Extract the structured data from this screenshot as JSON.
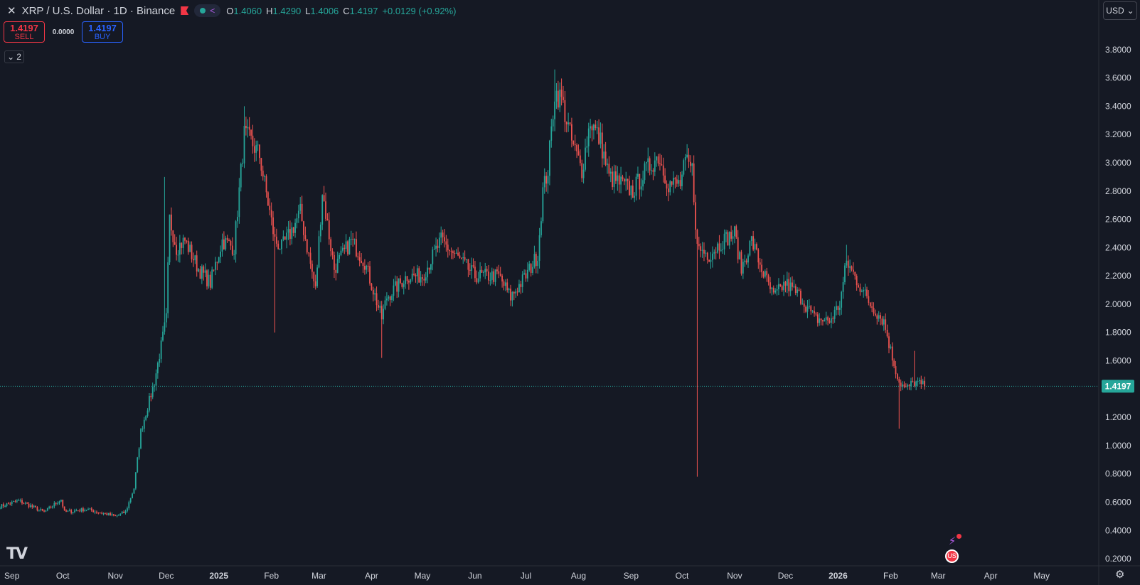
{
  "header": {
    "close_icon": "close-icon",
    "title": "XRP / U.S. Dollar · 1D · Binance",
    "ohlc": {
      "o_label": "O",
      "o": "1.4060",
      "h_label": "H",
      "h": "1.4290",
      "l_label": "L",
      "l": "1.4006",
      "c_label": "C",
      "c": "1.4197",
      "change": "+0.0129 (+0.92%)"
    }
  },
  "trade": {
    "sell_price": "1.4197",
    "sell_label": "SELL",
    "spread": "0.0000",
    "buy_price": "1.4197",
    "buy_label": "BUY"
  },
  "indicators_toggle": "2",
  "currency": "USD",
  "colors": {
    "background": "#151924",
    "up": "#26a69a",
    "down": "#ef5350",
    "text": "#d1d4dc",
    "grid": "#2a2e39"
  },
  "chart_data": {
    "type": "candlestick",
    "grid": false,
    "y_ticks": [
      "3.8000",
      "3.6000",
      "3.4000",
      "3.2000",
      "3.0000",
      "2.8000",
      "2.6000",
      "2.4000",
      "2.2000",
      "2.0000",
      "1.8000",
      "1.6000",
      "1.2000",
      "1.0000",
      "0.8000",
      "0.6000",
      "0.4000",
      "0.2000"
    ],
    "x_ticks": [
      "Sep",
      "Oct",
      "Nov",
      "Dec",
      "2025",
      "Feb",
      "Mar",
      "Apr",
      "May",
      "Jun",
      "Jul",
      "Aug",
      "Sep",
      "Oct",
      "Nov",
      "Dec",
      "2026",
      "Feb",
      "Mar",
      "Apr",
      "May"
    ],
    "last_price": 1.4197,
    "last_price_label": "1.4197",
    "x_range": [
      "2024-08-25",
      "2026-05-20"
    ],
    "y_range": [
      0.13,
      3.95
    ],
    "keypoints": [
      [
        "2024-08-25",
        0.57
      ],
      [
        "2024-09-05",
        0.61
      ],
      [
        "2024-09-20",
        0.53
      ],
      [
        "2024-09-30",
        0.62
      ],
      [
        "2024-10-02",
        0.53
      ],
      [
        "2024-10-15",
        0.55
      ],
      [
        "2024-11-01",
        0.5
      ],
      [
        "2024-11-07",
        0.53
      ],
      [
        "2024-11-12",
        0.7
      ],
      [
        "2024-11-16",
        1.1
      ],
      [
        "2024-11-24",
        1.45
      ],
      [
        "2024-12-01",
        1.9
      ],
      [
        "2024-12-03",
        2.6
      ],
      [
        "2024-12-07",
        2.4
      ],
      [
        "2024-12-12",
        2.45
      ],
      [
        "2024-12-20",
        2.25
      ],
      [
        "2024-12-27",
        2.15
      ],
      [
        "2025-01-03",
        2.45
      ],
      [
        "2025-01-10",
        2.4
      ],
      [
        "2025-01-16",
        3.2
      ],
      [
        "2025-01-20",
        3.15
      ],
      [
        "2025-01-25",
        3.05
      ],
      [
        "2025-02-03",
        2.45
      ],
      [
        "2025-02-07",
        2.4
      ],
      [
        "2025-02-12",
        2.5
      ],
      [
        "2025-02-18",
        2.65
      ],
      [
        "2025-02-27",
        2.1
      ],
      [
        "2025-03-03",
        2.8
      ],
      [
        "2025-03-10",
        2.25
      ],
      [
        "2025-03-20",
        2.45
      ],
      [
        "2025-03-28",
        2.3
      ],
      [
        "2025-04-07",
        1.9
      ],
      [
        "2025-04-10",
        2.05
      ],
      [
        "2025-04-22",
        2.2
      ],
      [
        "2025-05-01",
        2.2
      ],
      [
        "2025-05-12",
        2.45
      ],
      [
        "2025-05-20",
        2.35
      ],
      [
        "2025-06-01",
        2.2
      ],
      [
        "2025-06-15",
        2.2
      ],
      [
        "2025-06-22",
        2.05
      ],
      [
        "2025-07-01",
        2.2
      ],
      [
        "2025-07-08",
        2.35
      ],
      [
        "2025-07-11",
        2.8
      ],
      [
        "2025-07-14",
        2.95
      ],
      [
        "2025-07-18",
        3.5
      ],
      [
        "2025-07-22",
        3.45
      ],
      [
        "2025-07-28",
        3.15
      ],
      [
        "2025-08-03",
        2.95
      ],
      [
        "2025-08-08",
        3.3
      ],
      [
        "2025-08-14",
        3.15
      ],
      [
        "2025-08-19",
        2.9
      ],
      [
        "2025-08-26",
        2.85
      ],
      [
        "2025-09-02",
        2.8
      ],
      [
        "2025-09-10",
        2.95
      ],
      [
        "2025-09-17",
        3.05
      ],
      [
        "2025-09-23",
        2.85
      ],
      [
        "2025-09-30",
        2.85
      ],
      [
        "2025-10-03",
        3.0
      ],
      [
        "2025-10-07",
        2.95
      ],
      [
        "2025-10-10",
        2.4
      ],
      [
        "2025-10-17",
        2.35
      ],
      [
        "2025-10-25",
        2.45
      ],
      [
        "2025-11-01",
        2.5
      ],
      [
        "2025-11-05",
        2.25
      ],
      [
        "2025-11-11",
        2.45
      ],
      [
        "2025-11-17",
        2.25
      ],
      [
        "2025-11-24",
        2.05
      ],
      [
        "2025-12-01",
        2.15
      ],
      [
        "2025-12-10",
        2.05
      ],
      [
        "2025-12-18",
        1.9
      ],
      [
        "2025-12-27",
        1.88
      ],
      [
        "2026-01-02",
        2.0
      ],
      [
        "2026-01-06",
        2.3
      ],
      [
        "2026-01-13",
        2.15
      ],
      [
        "2026-01-20",
        2.0
      ],
      [
        "2026-01-28",
        1.88
      ],
      [
        "2026-02-02",
        1.62
      ],
      [
        "2026-02-06",
        1.45
      ],
      [
        "2026-02-10",
        1.4
      ],
      [
        "2026-02-15",
        1.45
      ],
      [
        "2026-02-21",
        1.42
      ]
    ],
    "extreme_wicks": [
      [
        "2024-11-30",
        2.9,
        "high"
      ],
      [
        "2025-01-16",
        3.4,
        "high"
      ],
      [
        "2025-02-03",
        1.8,
        "low"
      ],
      [
        "2025-04-07",
        1.62,
        "low"
      ],
      [
        "2025-07-18",
        3.66,
        "high"
      ],
      [
        "2025-10-10",
        0.78,
        "low"
      ],
      [
        "2026-01-06",
        2.42,
        "high"
      ],
      [
        "2026-02-06",
        1.12,
        "low"
      ],
      [
        "2026-02-15",
        1.67,
        "high"
      ]
    ]
  },
  "icons": {
    "share": "share-icon",
    "events": "events-icon",
    "us_flag_event": "us-flag-event-icon",
    "settings": "gear-icon",
    "logo": "tradingview-logo"
  }
}
